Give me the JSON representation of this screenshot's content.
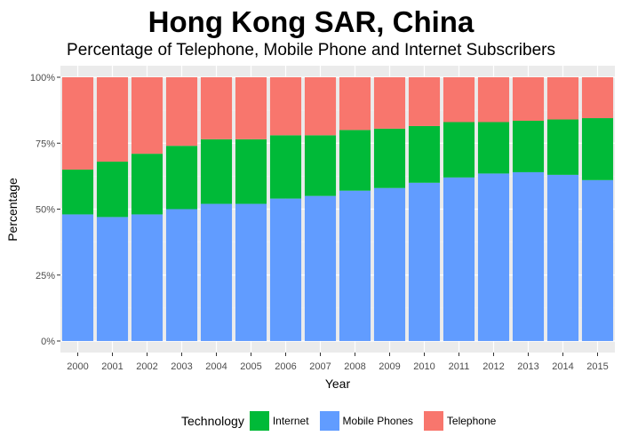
{
  "chart_data": {
    "type": "bar",
    "stacked": "percent",
    "title": "Hong Kong SAR, China",
    "subtitle": "Percentage of Telephone, Mobile Phone and Internet Subscribers",
    "xlabel": "Year",
    "ylabel": "Percentage",
    "ylim": [
      0,
      1
    ],
    "y_ticks": [
      "0%",
      "25%",
      "50%",
      "75%",
      "100%"
    ],
    "grid": true,
    "legend": {
      "title": "Technology",
      "position": "bottom"
    },
    "categories": [
      "2000",
      "2001",
      "2002",
      "2003",
      "2004",
      "2005",
      "2006",
      "2007",
      "2008",
      "2009",
      "2010",
      "2011",
      "2012",
      "2013",
      "2014",
      "2015"
    ],
    "series": [
      {
        "name": "Mobile Phones",
        "color": "#619CFF",
        "values": [
          0.48,
          0.47,
          0.48,
          0.5,
          0.52,
          0.52,
          0.54,
          0.55,
          0.57,
          0.58,
          0.6,
          0.62,
          0.635,
          0.64,
          0.63,
          0.61
        ]
      },
      {
        "name": "Internet",
        "color": "#00BA38",
        "values": [
          0.17,
          0.21,
          0.23,
          0.24,
          0.245,
          0.245,
          0.24,
          0.23,
          0.23,
          0.225,
          0.215,
          0.21,
          0.195,
          0.195,
          0.21,
          0.235
        ]
      },
      {
        "name": "Telephone",
        "color": "#F8766D",
        "values": [
          0.35,
          0.32,
          0.29,
          0.26,
          0.235,
          0.235,
          0.22,
          0.22,
          0.2,
          0.195,
          0.185,
          0.17,
          0.17,
          0.165,
          0.16,
          0.155
        ]
      }
    ],
    "legend_order": [
      "Internet",
      "Mobile Phones",
      "Telephone"
    ]
  }
}
